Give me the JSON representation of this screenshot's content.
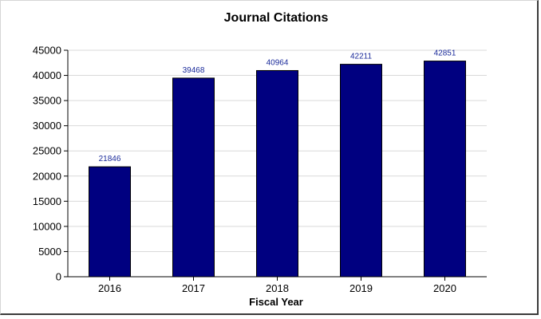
{
  "chart_data": {
    "type": "bar",
    "title": "Journal Citations",
    "xlabel": "Fiscal Year",
    "ylabel": "",
    "categories": [
      "2016",
      "2017",
      "2018",
      "2019",
      "2020"
    ],
    "values": [
      21846,
      39468,
      40964,
      42211,
      42851
    ],
    "data_labels": [
      "21846",
      "39468",
      "40964",
      "42211",
      "42851"
    ],
    "ylim": [
      0,
      45000
    ],
    "yticks": [
      0,
      5000,
      10000,
      15000,
      20000,
      25000,
      30000,
      35000,
      40000,
      45000
    ],
    "grid": true,
    "bar_color": "#000080",
    "label_color": "#1a2a9a"
  }
}
